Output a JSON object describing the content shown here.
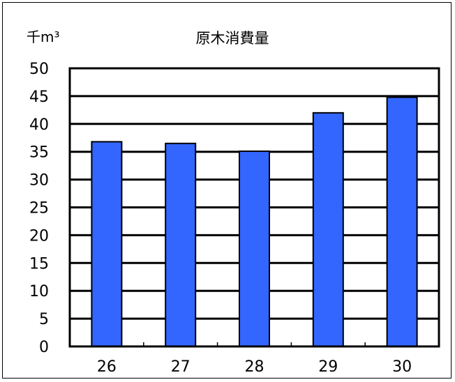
{
  "chart_data": {
    "type": "bar",
    "title": "原木消費量",
    "unit_label": "千m³",
    "categories": [
      "26",
      "27",
      "28",
      "29",
      "30"
    ],
    "values": [
      36.8,
      36.5,
      35.1,
      42.0,
      44.8
    ],
    "ylim": [
      0,
      50
    ],
    "yticks": [
      "0",
      "5",
      "10",
      "15",
      "20",
      "25",
      "30",
      "35",
      "40",
      "45",
      "50"
    ],
    "grid": true,
    "bar_color": "#3366ff",
    "bar_border_color": "#000000"
  }
}
